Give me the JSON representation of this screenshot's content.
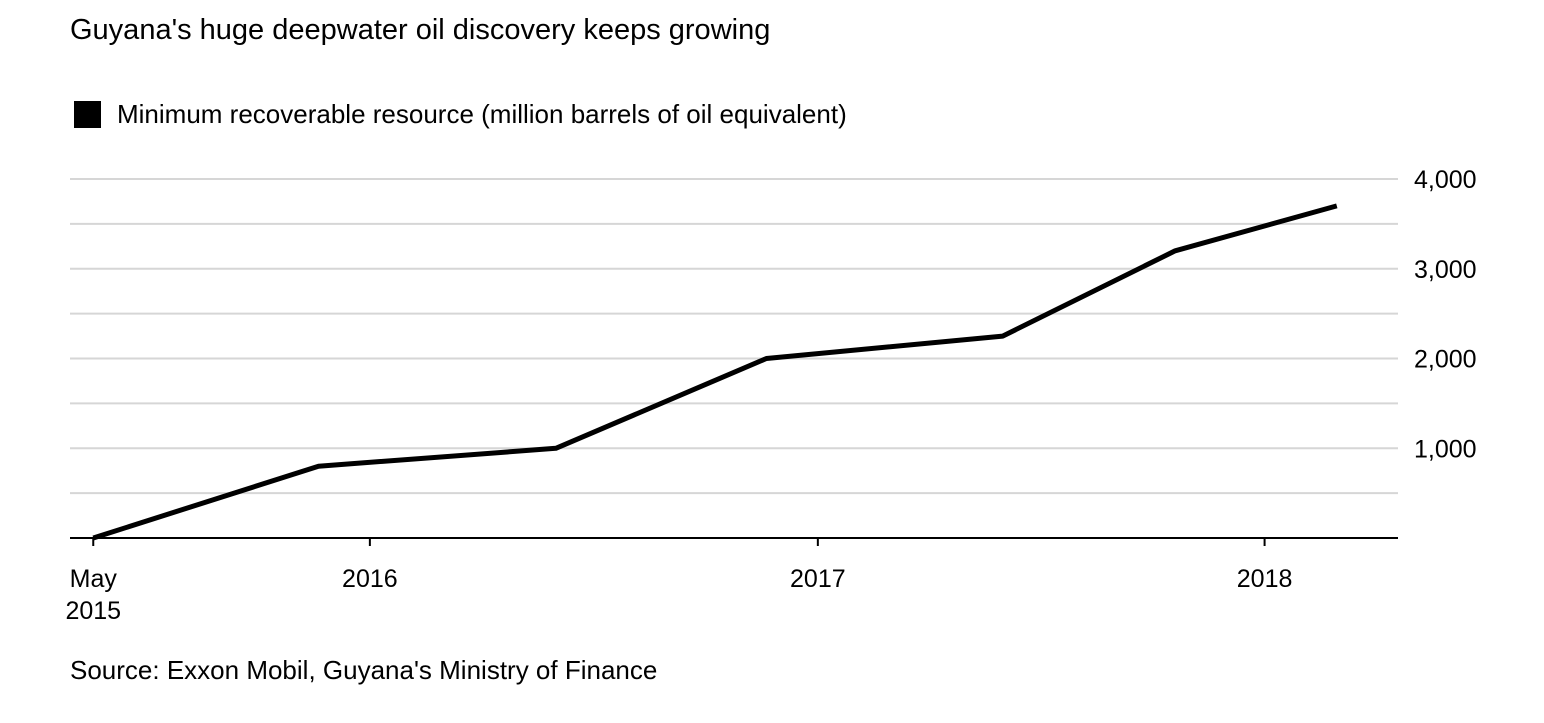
{
  "chart_data": {
    "type": "line",
    "title": "Guyana's huge deepwater oil discovery keeps growing",
    "source": "Source: Exxon Mobil, Guyana's Ministry of Finance",
    "ylabel": "",
    "xlabel": "",
    "ylim": [
      0,
      4000
    ],
    "y_ticks": [
      {
        "value": 1000,
        "label": "1,000"
      },
      {
        "value": 2000,
        "label": "2,000"
      },
      {
        "value": 3000,
        "label": "3,000"
      },
      {
        "value": 4000,
        "label": "4,000"
      }
    ],
    "y_gridlines": [
      500,
      1000,
      1500,
      2000,
      2500,
      3000,
      3500,
      4000
    ],
    "grid": true,
    "x_ticks": [
      {
        "date": "2015-05-20",
        "lines": [
          "May",
          "2015"
        ]
      },
      {
        "date": "2016-01-01",
        "lines": [
          "2016"
        ]
      },
      {
        "date": "2017-01-01",
        "lines": [
          "2017"
        ]
      },
      {
        "date": "2018-01-01",
        "lines": [
          "2018"
        ]
      }
    ],
    "xlim": [
      "2015-05-01",
      "2018-04-20"
    ],
    "legend_position": "top-left",
    "series": [
      {
        "name": "Minimum recoverable resource (million barrels of oil equivalent)",
        "color": "#000000",
        "points": [
          {
            "x": "2015-05-20",
            "y": 0
          },
          {
            "x": "2015-11-20",
            "y": 800
          },
          {
            "x": "2016-06-01",
            "y": 1000
          },
          {
            "x": "2016-11-20",
            "y": 2000
          },
          {
            "x": "2017-06-01",
            "y": 2250
          },
          {
            "x": "2017-10-20",
            "y": 3200
          },
          {
            "x": "2018-03-01",
            "y": 3700
          }
        ]
      }
    ]
  }
}
